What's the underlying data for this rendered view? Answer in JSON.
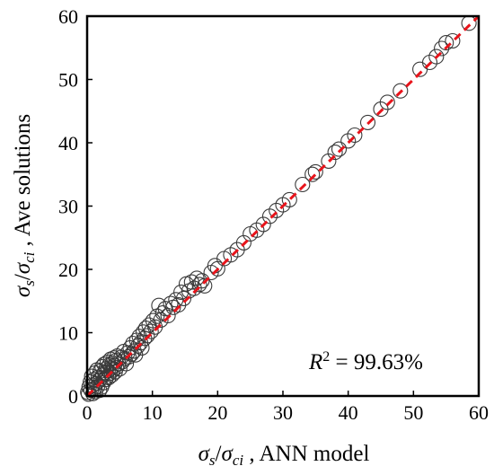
{
  "chart_data": {
    "type": "scatter",
    "title": "",
    "xlabel": {
      "sym1": "σ",
      "sub1": "s",
      "slash": "/",
      "sym2": "σ",
      "sub2": "ci",
      "rest": " , ANN model"
    },
    "ylabel": {
      "sym1": "σ",
      "sub1": "s",
      "slash": "/",
      "sym2": "σ",
      "sub2": "ci",
      "rest": " , Ave solutions"
    },
    "xlim": [
      0,
      60
    ],
    "ylim": [
      0,
      60
    ],
    "xticks": [
      "0",
      "10",
      "20",
      "30",
      "40",
      "50",
      "60"
    ],
    "yticks": [
      "0",
      "10",
      "20",
      "30",
      "40",
      "50",
      "60"
    ],
    "grid": false,
    "annotation": {
      "base": "R",
      "sup": "2",
      "rest": " = 99.63%"
    },
    "reference_line": {
      "points": [
        [
          0,
          0
        ],
        [
          60,
          60
        ]
      ],
      "color": "#e8141b",
      "style": "dashed"
    },
    "marker_color": "#3a3a3a",
    "points": [
      [
        0.1,
        0.6
      ],
      [
        0.2,
        0.3
      ],
      [
        0.3,
        1.4
      ],
      [
        0.5,
        2.2
      ],
      [
        0.6,
        0.9
      ],
      [
        0.7,
        3.1
      ],
      [
        0.8,
        1.7
      ],
      [
        0.9,
        0.4
      ],
      [
        1.0,
        2.6
      ],
      [
        1.1,
        1.2
      ],
      [
        1.2,
        3.6
      ],
      [
        1.3,
        0.7
      ],
      [
        1.4,
        2.0
      ],
      [
        1.5,
        4.1
      ],
      [
        1.6,
        1.5
      ],
      [
        1.7,
        3.0
      ],
      [
        1.8,
        2.4
      ],
      [
        1.9,
        0.9
      ],
      [
        2.0,
        3.9
      ],
      [
        2.1,
        2.8
      ],
      [
        2.2,
        1.4
      ],
      [
        2.3,
        4.6
      ],
      [
        2.4,
        3.3
      ],
      [
        2.5,
        2.1
      ],
      [
        2.6,
        5.0
      ],
      [
        2.7,
        3.7
      ],
      [
        2.8,
        2.6
      ],
      [
        2.9,
        4.3
      ],
      [
        3.0,
        3.0
      ],
      [
        3.1,
        5.3
      ],
      [
        3.2,
        4.0
      ],
      [
        3.3,
        2.9
      ],
      [
        3.4,
        4.9
      ],
      [
        3.5,
        3.6
      ],
      [
        3.6,
        5.8
      ],
      [
        3.7,
        4.4
      ],
      [
        3.8,
        3.3
      ],
      [
        3.9,
        5.2
      ],
      [
        4.0,
        4.1
      ],
      [
        4.1,
        6.0
      ],
      [
        4.2,
        4.8
      ],
      [
        4.3,
        3.8
      ],
      [
        4.4,
        5.6
      ],
      [
        4.5,
        4.5
      ],
      [
        4.6,
        6.3
      ],
      [
        4.8,
        5.1
      ],
      [
        5.0,
        4.3
      ],
      [
        5.2,
        6.1
      ],
      [
        5.4,
        5.4
      ],
      [
        5.6,
        7.0
      ],
      [
        5.8,
        5.9
      ],
      [
        6.0,
        5.1
      ],
      [
        6.2,
        6.8
      ],
      [
        6.4,
        6.2
      ],
      [
        6.6,
        7.6
      ],
      [
        6.8,
        6.6
      ],
      [
        7.0,
        8.3
      ],
      [
        7.2,
        7.1
      ],
      [
        7.4,
        6.5
      ],
      [
        7.6,
        8.8
      ],
      [
        7.8,
        7.9
      ],
      [
        8.0,
        9.4
      ],
      [
        8.2,
        8.4
      ],
      [
        8.4,
        7.6
      ],
      [
        8.6,
        10.1
      ],
      [
        8.8,
        9.1
      ],
      [
        9.0,
        10.7
      ],
      [
        9.2,
        9.5
      ],
      [
        9.5,
        11.2
      ],
      [
        9.8,
        10.2
      ],
      [
        10.1,
        11.9
      ],
      [
        10.4,
        10.9
      ],
      [
        10.7,
        12.6
      ],
      [
        11.0,
        14.3
      ],
      [
        11.3,
        12.0
      ],
      [
        11.6,
        13.1
      ],
      [
        12.0,
        13.8
      ],
      [
        12.4,
        12.7
      ],
      [
        12.8,
        14.6
      ],
      [
        13.2,
        14.0
      ],
      [
        13.6,
        15.2
      ],
      [
        14.0,
        14.4
      ],
      [
        14.4,
        16.4
      ],
      [
        14.8,
        15.4
      ],
      [
        15.2,
        17.7
      ],
      [
        15.6,
        16.6
      ],
      [
        16.0,
        18.0
      ],
      [
        16.4,
        17.0
      ],
      [
        16.8,
        18.6
      ],
      [
        17.2,
        17.6
      ],
      [
        17.6,
        18.2
      ],
      [
        18.0,
        17.4
      ],
      [
        19.0,
        19.5
      ],
      [
        19.6,
        20.6
      ],
      [
        20.0,
        20.1
      ],
      [
        21.0,
        21.7
      ],
      [
        22.0,
        22.3
      ],
      [
        23.0,
        23.1
      ],
      [
        24.0,
        24.2
      ],
      [
        25.0,
        25.6
      ],
      [
        26.0,
        26.2
      ],
      [
        27.0,
        27.1
      ],
      [
        28.0,
        28.4
      ],
      [
        29.0,
        29.3
      ],
      [
        30.0,
        30.2
      ],
      [
        31.0,
        31.0
      ],
      [
        33.0,
        33.4
      ],
      [
        34.5,
        35.0
      ],
      [
        35.0,
        35.4
      ],
      [
        37.0,
        37.1
      ],
      [
        38.0,
        38.5
      ],
      [
        38.6,
        39.0
      ],
      [
        40.0,
        40.3
      ],
      [
        41.0,
        41.2
      ],
      [
        43.0,
        43.2
      ],
      [
        45.0,
        45.3
      ],
      [
        46.0,
        46.4
      ],
      [
        48.0,
        48.2
      ],
      [
        51.0,
        51.6
      ],
      [
        52.5,
        52.7
      ],
      [
        53.5,
        53.6
      ],
      [
        54.3,
        54.9
      ],
      [
        55.0,
        55.8
      ],
      [
        56.0,
        56.1
      ],
      [
        58.5,
        58.9
      ]
    ]
  }
}
